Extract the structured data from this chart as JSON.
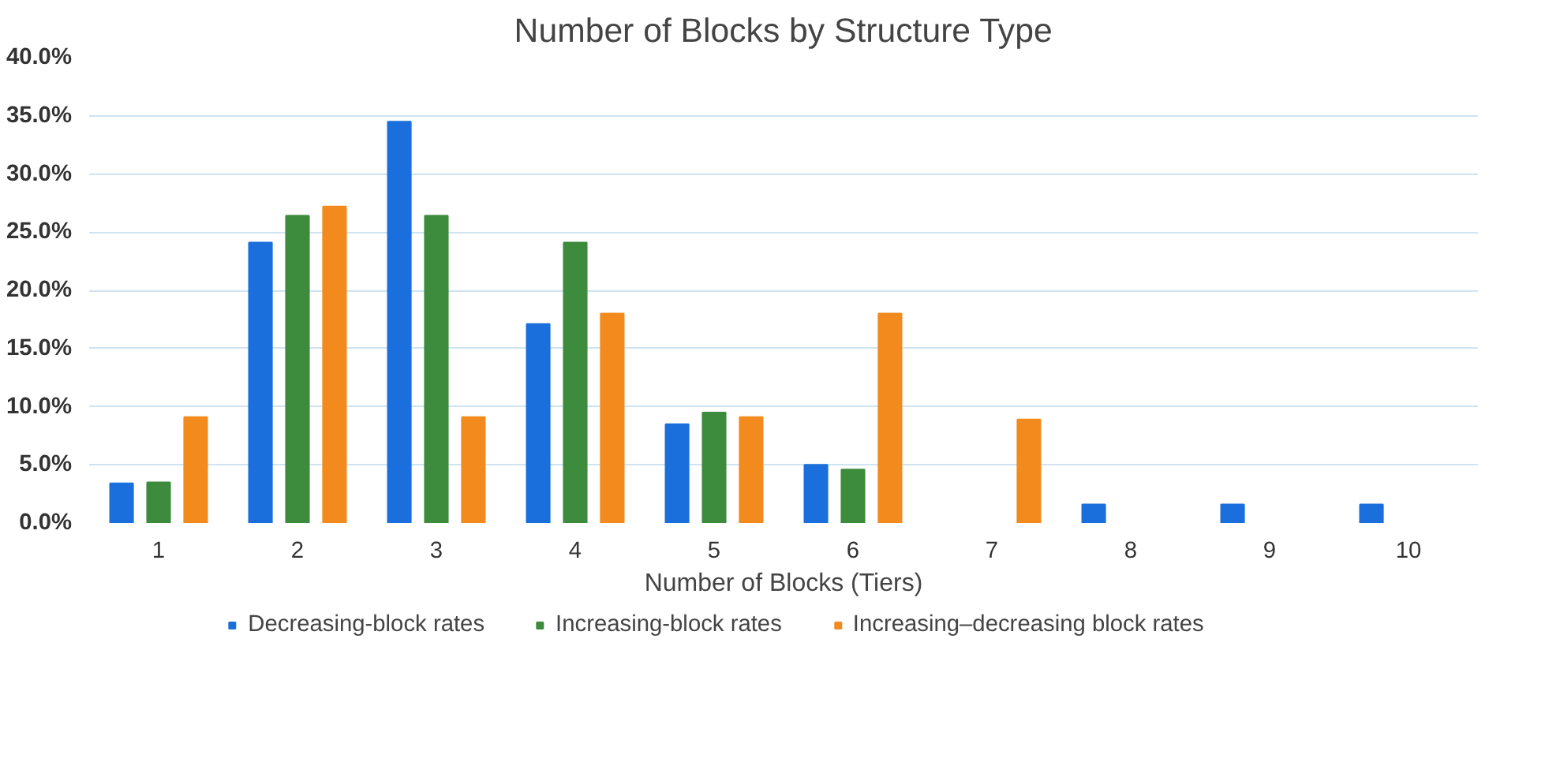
{
  "chart_data": {
    "type": "bar",
    "title": "Number of Blocks by Structure Type",
    "xlabel": "Number of Blocks (Tiers)",
    "categories": [
      "1",
      "2",
      "3",
      "4",
      "5",
      "6",
      "7",
      "8",
      "9",
      "10"
    ],
    "series": [
      {
        "name": "Decreasing-block rates",
        "color": "#1a6fdc",
        "values": [
          3.4,
          24.1,
          34.5,
          17.1,
          8.5,
          5.0,
          null,
          1.6,
          1.6,
          1.6
        ]
      },
      {
        "name": "Increasing-block rates",
        "color": "#3d8b3d",
        "values": [
          3.5,
          26.4,
          26.4,
          24.1,
          9.5,
          4.6,
          null,
          null,
          null,
          null
        ]
      },
      {
        "name": "Increasing–decreasing block rates",
        "color": "#f28a1e",
        "values": [
          9.1,
          27.2,
          9.1,
          18.0,
          9.1,
          18.0,
          8.9,
          null,
          null,
          null
        ]
      }
    ],
    "ylim": [
      0,
      40
    ],
    "yticks": [
      {
        "value": 0,
        "label": "0.0%"
      },
      {
        "value": 5,
        "label": "5.0%"
      },
      {
        "value": 10,
        "label": "10.0%"
      },
      {
        "value": 15,
        "label": "15.0%"
      },
      {
        "value": 20,
        "label": "20.0%"
      },
      {
        "value": 25,
        "label": "25.0%"
      },
      {
        "value": 30,
        "label": "30.0%"
      },
      {
        "value": 35,
        "label": "35.0%"
      },
      {
        "value": 40,
        "label": "40.0%"
      }
    ],
    "grid": "y",
    "legend": "bottom"
  }
}
